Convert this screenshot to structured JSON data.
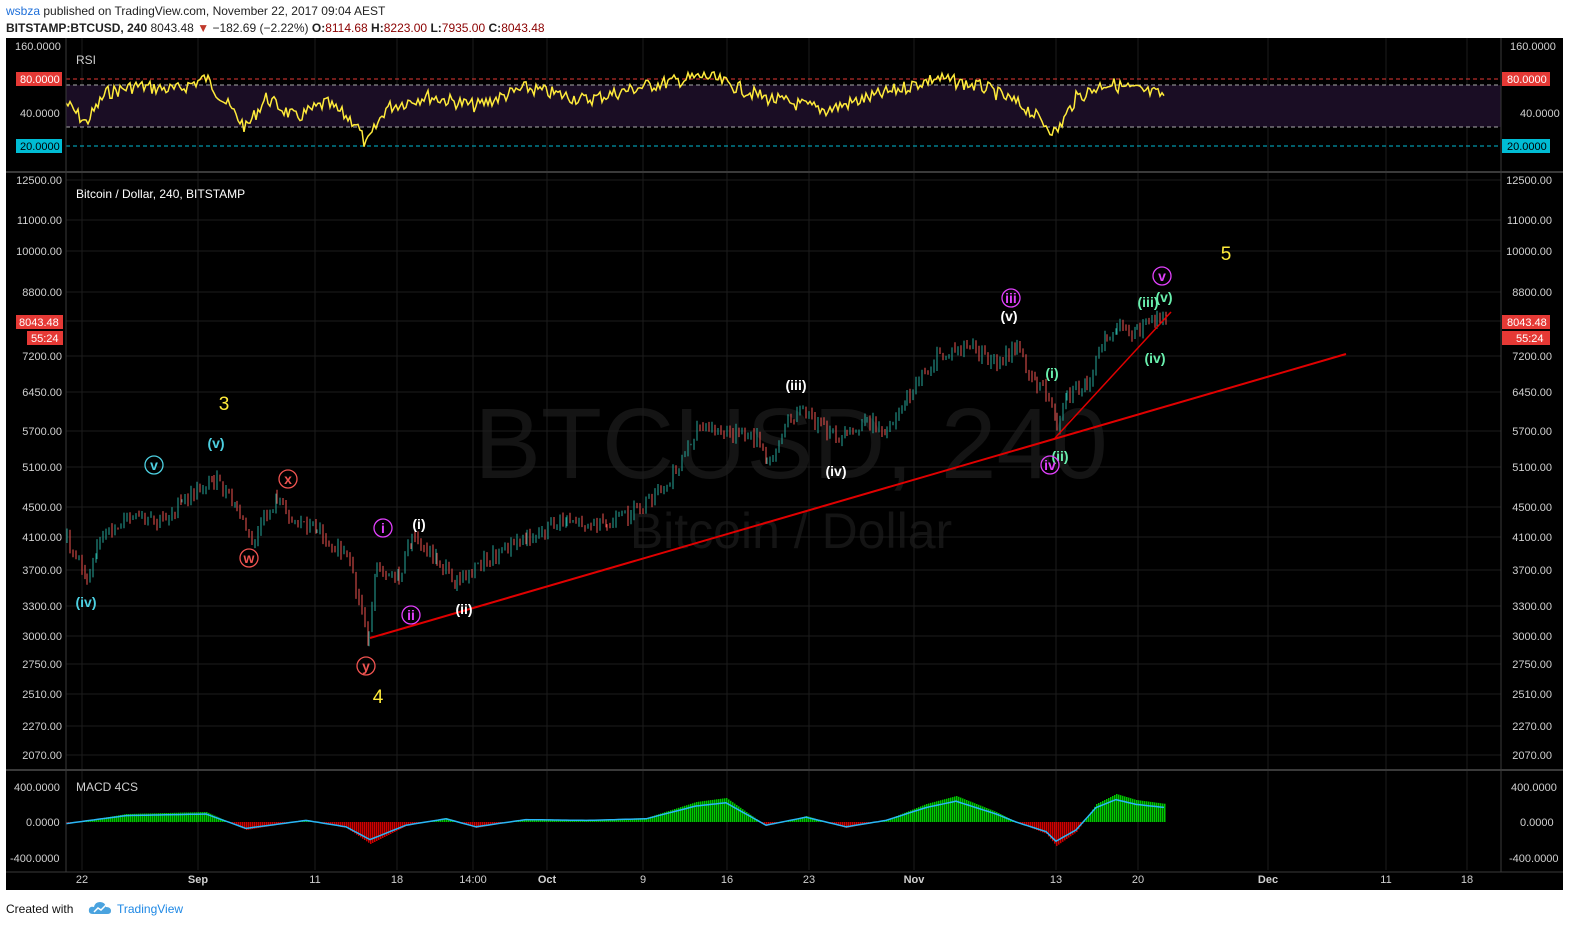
{
  "header": {
    "user": "wsbza",
    "published_text": "published on TradingView.com, November 22, 2017 09:04 AEST",
    "symbol": "BITSTAMP:BTCUSD, 240",
    "last": "8043.48",
    "change": "−182.69 (−2.22%)",
    "open_label": "O:",
    "open": "8114.68",
    "high_label": "H:",
    "high": "8223.00",
    "low_label": "L:",
    "low": "7935.00",
    "close_label": "C:",
    "close": "8043.48"
  },
  "rsi_pane": {
    "title": "RSI",
    "axis_labels": [
      "160.0000",
      "40.0000"
    ],
    "upper_level": "80.0000",
    "lower_level": "20.0000"
  },
  "price_pane": {
    "title": "Bitcoin / Dollar, 240, BITSTAMP",
    "watermark_symbol": "BTCUSD, 240",
    "watermark_name": "Bitcoin / Dollar",
    "price_labels": [
      "12500.00",
      "11000.00",
      "10000.00",
      "8800.00",
      "7200.00",
      "6450.00",
      "5700.00",
      "5100.00",
      "4500.00",
      "4100.00",
      "3700.00",
      "3300.00",
      "3000.00",
      "2750.00",
      "2510.00",
      "2270.00",
      "2070.00"
    ],
    "last_price": "8043.48",
    "countdown": "55:24",
    "wave_labels": [
      "3",
      "4",
      "5",
      "v",
      "(v)",
      "(iv)",
      "x",
      "w",
      "y",
      "i",
      "ii",
      "(i)",
      "(ii)",
      "(iii)",
      "(iv)",
      "iii",
      "(v)",
      "(i)",
      "(ii)",
      "iv",
      "(iii)",
      "(iv)",
      "(v)",
      "v"
    ]
  },
  "macd_pane": {
    "title": "MACD 4CS",
    "axis_labels": [
      "400.0000",
      "0.0000",
      "-400.0000"
    ]
  },
  "time_axis": [
    "22",
    "Sep",
    "11",
    "18",
    "14:00",
    "Oct",
    "9",
    "16",
    "23",
    "Nov",
    "13",
    "20",
    "Dec",
    "11",
    "18"
  ],
  "footer": {
    "created_with": "Created with",
    "brand": "TradingView"
  },
  "colors": {
    "background": "#000000",
    "rsi_line": "#ffeb3b",
    "trendline": "#e00000",
    "macd_pos": "#00c800",
    "macd_neg": "#d00000",
    "wave_yellow": "#ffeb3b",
    "wave_cyan": "#4dd0e1",
    "wave_red": "#ef5350",
    "wave_magenta": "#e040fb",
    "wave_green": "#69f0ae",
    "wave_white": "#ffffff"
  }
}
